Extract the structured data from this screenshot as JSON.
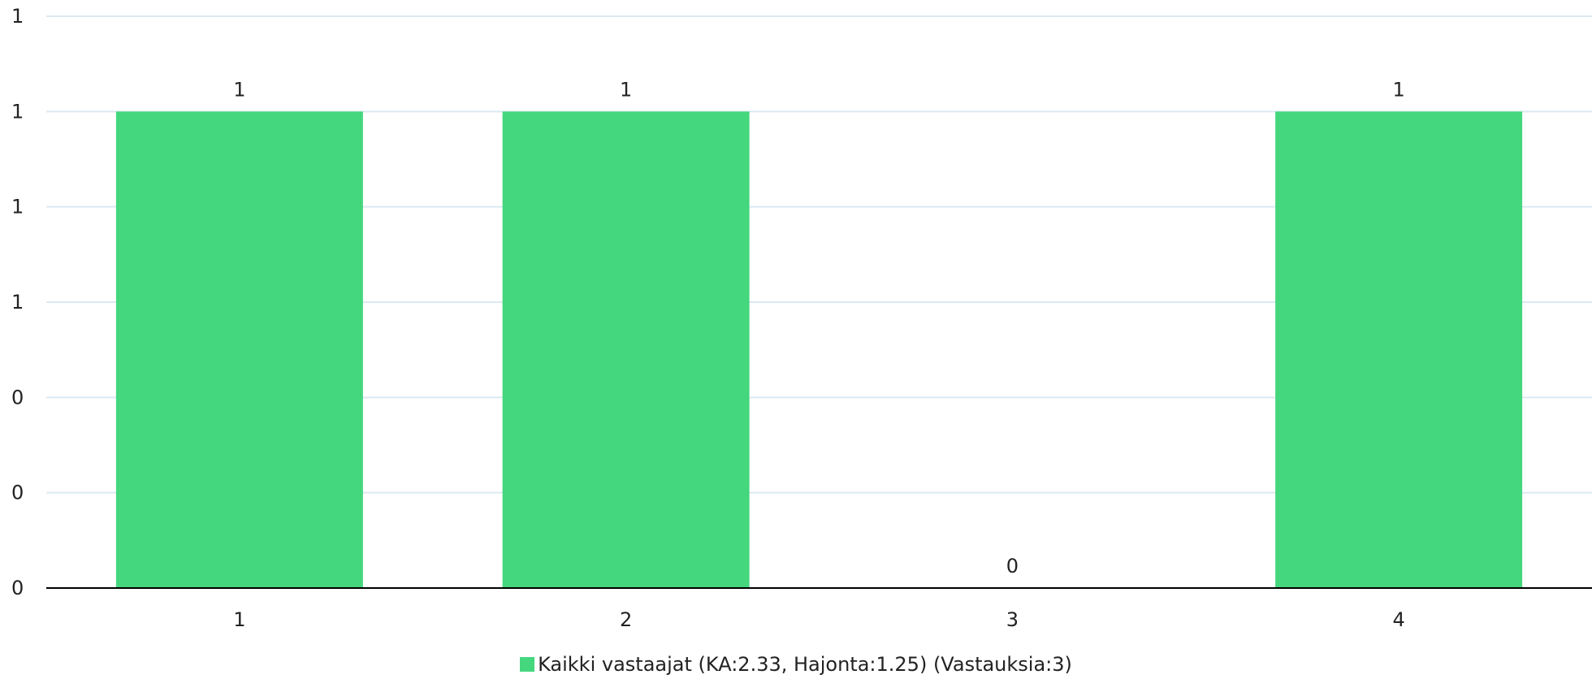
{
  "chart_data": {
    "type": "bar",
    "categories": [
      "1",
      "2",
      "3",
      "4"
    ],
    "series": [
      {
        "name": "Kaikki vastaajat (KA:2.33, Hajonta:1.25) (Vastauksia:3)",
        "values": [
          1,
          1,
          0,
          1
        ],
        "data_labels": [
          "1",
          "1",
          "0",
          "1"
        ],
        "color": "#44d77d"
      }
    ],
    "y_tick_labels": [
      "0",
      "0",
      "0",
      "1",
      "1",
      "1",
      "1"
    ],
    "ylim": [
      0,
      1.2
    ],
    "grid": true,
    "legend_position": "bottom-center",
    "colors": {
      "grid": "#dbe9f2",
      "axis": "#000000"
    }
  }
}
